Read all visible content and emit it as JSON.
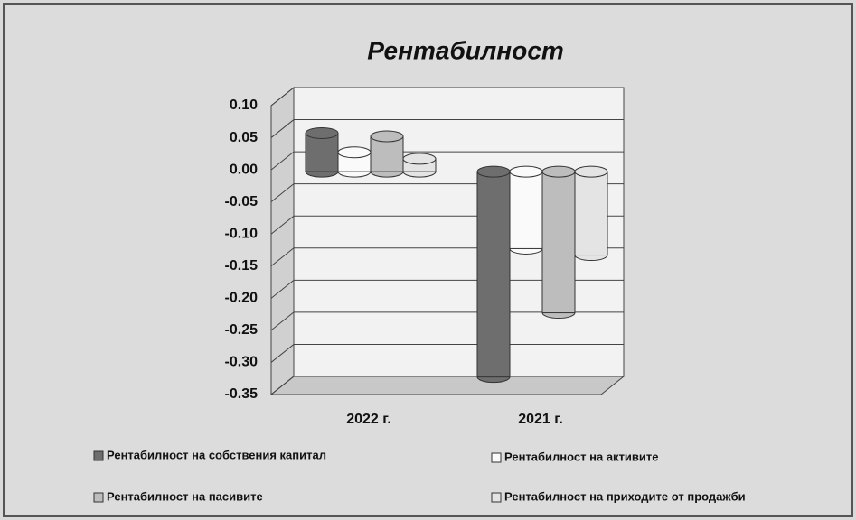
{
  "chart_data": {
    "type": "bar",
    "title": "Рентабилност",
    "categories": [
      "2022 г.",
      "2021 г."
    ],
    "series": [
      {
        "name": "Рентабилност на собствения капитал",
        "color": "#6e6e6e",
        "values": [
          0.06,
          -0.32
        ]
      },
      {
        "name": "Рентабилност на активите",
        "color": "#fafafa",
        "values": [
          0.03,
          -0.12
        ]
      },
      {
        "name": "Рентабилност на пасивите",
        "color": "#bdbdbd",
        "values": [
          0.055,
          -0.22
        ]
      },
      {
        "name": "Рентабилност на приходите от продажби",
        "color": "#e4e4e4",
        "values": [
          0.02,
          -0.13
        ]
      }
    ],
    "ylim": [
      -0.35,
      0.1
    ],
    "yticks": [
      {
        "value": 0.1,
        "label": "0.10"
      },
      {
        "value": 0.05,
        "label": "0.05"
      },
      {
        "value": 0,
        "label": "0.00"
      },
      {
        "value": -0.05,
        "label": "-0.05"
      },
      {
        "value": -0.1,
        "label": "-0.10"
      },
      {
        "value": -0.15,
        "label": "-0.15"
      },
      {
        "value": -0.2,
        "label": "-0.20"
      },
      {
        "value": -0.25,
        "label": "-0.25"
      },
      {
        "value": -0.3,
        "label": "-0.30"
      },
      {
        "value": -0.35,
        "label": "-0.35"
      }
    ],
    "grid": true
  }
}
